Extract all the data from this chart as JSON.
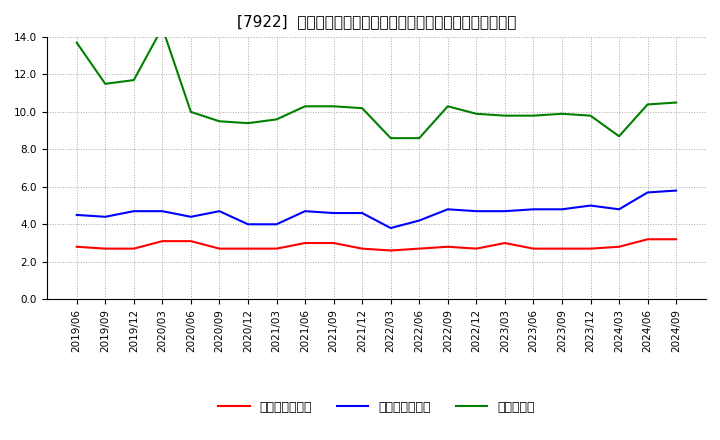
{
  "title": "[7922]  売上債権回転率、買入債務回転率、在庫回転率の推移",
  "x_labels": [
    "2019/06",
    "2019/09",
    "2019/12",
    "2020/03",
    "2020/06",
    "2020/09",
    "2020/12",
    "2021/03",
    "2021/06",
    "2021/09",
    "2021/12",
    "2022/03",
    "2022/06",
    "2022/09",
    "2022/12",
    "2023/03",
    "2023/06",
    "2023/09",
    "2023/12",
    "2024/03",
    "2024/06",
    "2024/09"
  ],
  "receivables_turnover": [
    2.8,
    2.7,
    2.7,
    3.1,
    3.1,
    2.7,
    2.7,
    2.7,
    3.0,
    3.0,
    2.7,
    2.6,
    2.7,
    2.8,
    2.7,
    3.0,
    2.7,
    2.7,
    2.7,
    2.8,
    3.2,
    3.2
  ],
  "payables_turnover": [
    4.5,
    4.4,
    4.7,
    4.7,
    4.4,
    4.7,
    4.0,
    4.0,
    4.7,
    4.6,
    4.6,
    3.8,
    4.2,
    4.8,
    4.7,
    4.7,
    4.8,
    4.8,
    5.0,
    4.8,
    5.7,
    5.8
  ],
  "inventory_turnover": [
    13.7,
    11.5,
    11.7,
    14.5,
    10.0,
    9.5,
    9.4,
    9.6,
    10.3,
    10.3,
    10.2,
    8.6,
    8.6,
    10.3,
    9.9,
    9.8,
    9.8,
    9.9,
    9.8,
    8.7,
    10.4,
    10.5
  ],
  "line_colors": {
    "receivables": "#ff0000",
    "payables": "#0000ff",
    "inventory": "#008000"
  },
  "legend_labels": {
    "receivables": "売上債権回転率",
    "payables": "買入債務回転率",
    "inventory": "在庫回転率"
  },
  "ylim": [
    0.0,
    14.0
  ],
  "yticks": [
    0.0,
    2.0,
    4.0,
    6.0,
    8.0,
    10.0,
    12.0,
    14.0
  ],
  "background_color": "#ffffff",
  "plot_bg_color": "#ffffff",
  "grid_color": "#aaaaaa",
  "title_fontsize": 11,
  "tick_fontsize": 7.5,
  "legend_fontsize": 9
}
